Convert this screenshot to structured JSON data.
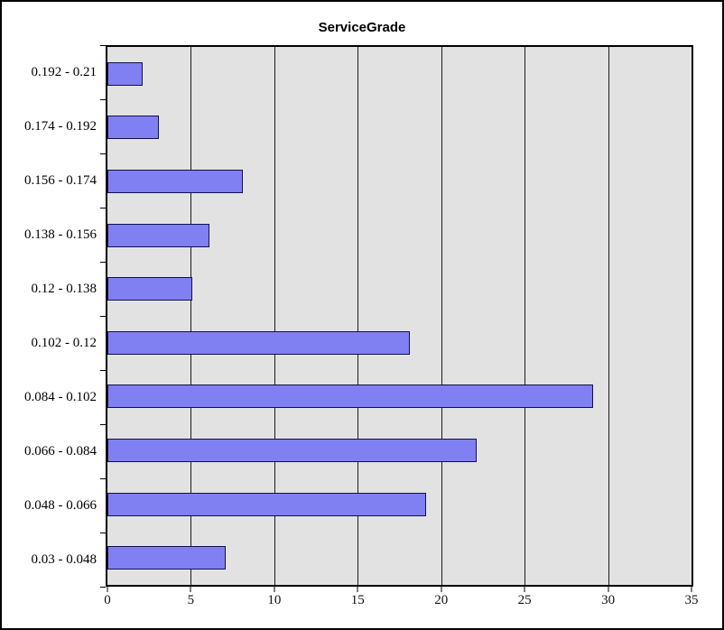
{
  "chart_data": {
    "type": "bar",
    "orientation": "horizontal",
    "title": "ServiceGrade",
    "categories": [
      "0.192 - 0.21",
      "0.174 - 0.192",
      "0.156 - 0.174",
      "0.138 - 0.156",
      "0.12 - 0.138",
      "0.102 - 0.12",
      "0.084 - 0.102",
      "0.066 - 0.084",
      "0.048 - 0.066",
      "0.03 - 0.048"
    ],
    "values": [
      2,
      3,
      8,
      6,
      5,
      18,
      29,
      22,
      19,
      7
    ],
    "xlabel": "",
    "ylabel": "",
    "xlim": [
      0,
      35
    ],
    "x_ticks": [
      0,
      5,
      10,
      15,
      20,
      25,
      30,
      35
    ],
    "grid": "vertical-solid",
    "legend": "none",
    "colors": {
      "bar_fill": "#8080f2",
      "bar_border": "#10104d",
      "plot_bg": "#e2e2e2",
      "grid_line": "#1c1c1c",
      "axis_line": "#000000",
      "frame_border": "#000000",
      "text": "#000000"
    }
  }
}
